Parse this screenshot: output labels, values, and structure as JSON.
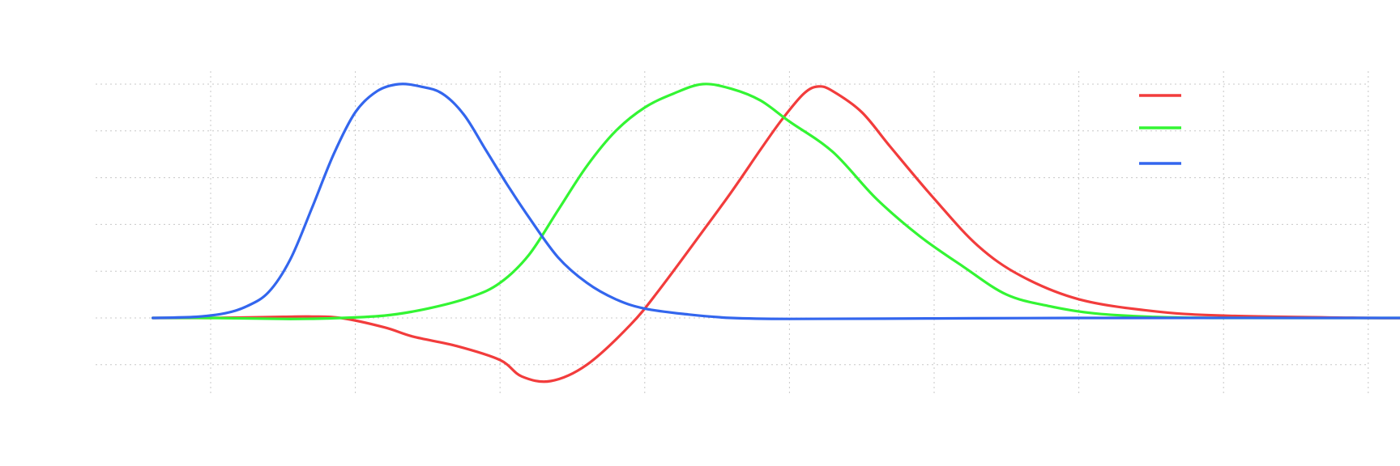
{
  "chart_data": {
    "type": "line",
    "title": "",
    "xlabel": "",
    "ylabel": "",
    "xlim": [
      -2.4,
      6.4
    ],
    "ylim": [
      -0.3,
      1.05
    ],
    "x_grid": [
      -2,
      -1,
      0,
      1,
      2,
      3,
      4,
      5,
      6
    ],
    "y_grid": [
      -0.2,
      0,
      0.2,
      0.4,
      0.6,
      0.8,
      1.0
    ],
    "grid": true,
    "legend_position": "top-right",
    "series": [
      {
        "color": "#f23c3c",
        "points": [
          [
            -2.4,
            0.0
          ],
          [
            -2.0,
            0.0
          ],
          [
            -1.5,
            0.005
          ],
          [
            -1.3,
            0.006
          ],
          [
            -1.1,
            0.0
          ],
          [
            -0.8,
            -0.04
          ],
          [
            -0.6,
            -0.08
          ],
          [
            -0.3,
            -0.12
          ],
          [
            0.0,
            -0.18
          ],
          [
            0.15,
            -0.25
          ],
          [
            0.35,
            -0.27
          ],
          [
            0.6,
            -0.2
          ],
          [
            0.9,
            -0.03
          ],
          [
            1.1,
            0.12
          ],
          [
            1.4,
            0.37
          ],
          [
            1.6,
            0.54
          ],
          [
            1.8,
            0.72
          ],
          [
            1.95,
            0.85
          ],
          [
            2.1,
            0.96
          ],
          [
            2.2,
            0.99
          ],
          [
            2.3,
            0.97
          ],
          [
            2.5,
            0.88
          ],
          [
            2.7,
            0.73
          ],
          [
            3.0,
            0.51
          ],
          [
            3.3,
            0.31
          ],
          [
            3.6,
            0.18
          ],
          [
            4.0,
            0.08
          ],
          [
            4.5,
            0.03
          ],
          [
            5.0,
            0.01
          ],
          [
            6.0,
            0.0
          ],
          [
            6.4,
            0.0
          ]
        ]
      },
      {
        "color": "#33f533",
        "points": [
          [
            -2.4,
            0.0
          ],
          [
            -2.0,
            0.0
          ],
          [
            -1.5,
            -0.004
          ],
          [
            -1.2,
            -0.002
          ],
          [
            -0.8,
            0.01
          ],
          [
            -0.5,
            0.04
          ],
          [
            -0.2,
            0.09
          ],
          [
            0.0,
            0.15
          ],
          [
            0.2,
            0.27
          ],
          [
            0.4,
            0.46
          ],
          [
            0.6,
            0.65
          ],
          [
            0.8,
            0.8
          ],
          [
            1.0,
            0.9
          ],
          [
            1.2,
            0.96
          ],
          [
            1.4,
            1.0
          ],
          [
            1.6,
            0.98
          ],
          [
            1.8,
            0.93
          ],
          [
            2.0,
            0.84
          ],
          [
            2.3,
            0.71
          ],
          [
            2.6,
            0.51
          ],
          [
            2.9,
            0.35
          ],
          [
            3.2,
            0.22
          ],
          [
            3.5,
            0.1
          ],
          [
            3.8,
            0.05
          ],
          [
            4.1,
            0.02
          ],
          [
            4.5,
            0.005
          ],
          [
            5.0,
            0.0
          ],
          [
            6.4,
            0.0
          ]
        ]
      },
      {
        "color": "#3366ee",
        "points": [
          [
            -2.4,
            0.0
          ],
          [
            -2.1,
            0.005
          ],
          [
            -1.9,
            0.02
          ],
          [
            -1.75,
            0.05
          ],
          [
            -1.6,
            0.11
          ],
          [
            -1.45,
            0.25
          ],
          [
            -1.3,
            0.47
          ],
          [
            -1.15,
            0.7
          ],
          [
            -1.0,
            0.88
          ],
          [
            -0.85,
            0.97
          ],
          [
            -0.7,
            1.0
          ],
          [
            -0.55,
            0.99
          ],
          [
            -0.4,
            0.96
          ],
          [
            -0.25,
            0.87
          ],
          [
            -0.1,
            0.72
          ],
          [
            0.05,
            0.57
          ],
          [
            0.2,
            0.43
          ],
          [
            0.4,
            0.26
          ],
          [
            0.6,
            0.15
          ],
          [
            0.8,
            0.08
          ],
          [
            1.0,
            0.04
          ],
          [
            1.3,
            0.015
          ],
          [
            1.6,
            0.0
          ],
          [
            2.0,
            -0.004
          ],
          [
            3.0,
            -0.002
          ],
          [
            4.0,
            0.0
          ],
          [
            6.4,
            0.0
          ]
        ]
      }
    ]
  }
}
